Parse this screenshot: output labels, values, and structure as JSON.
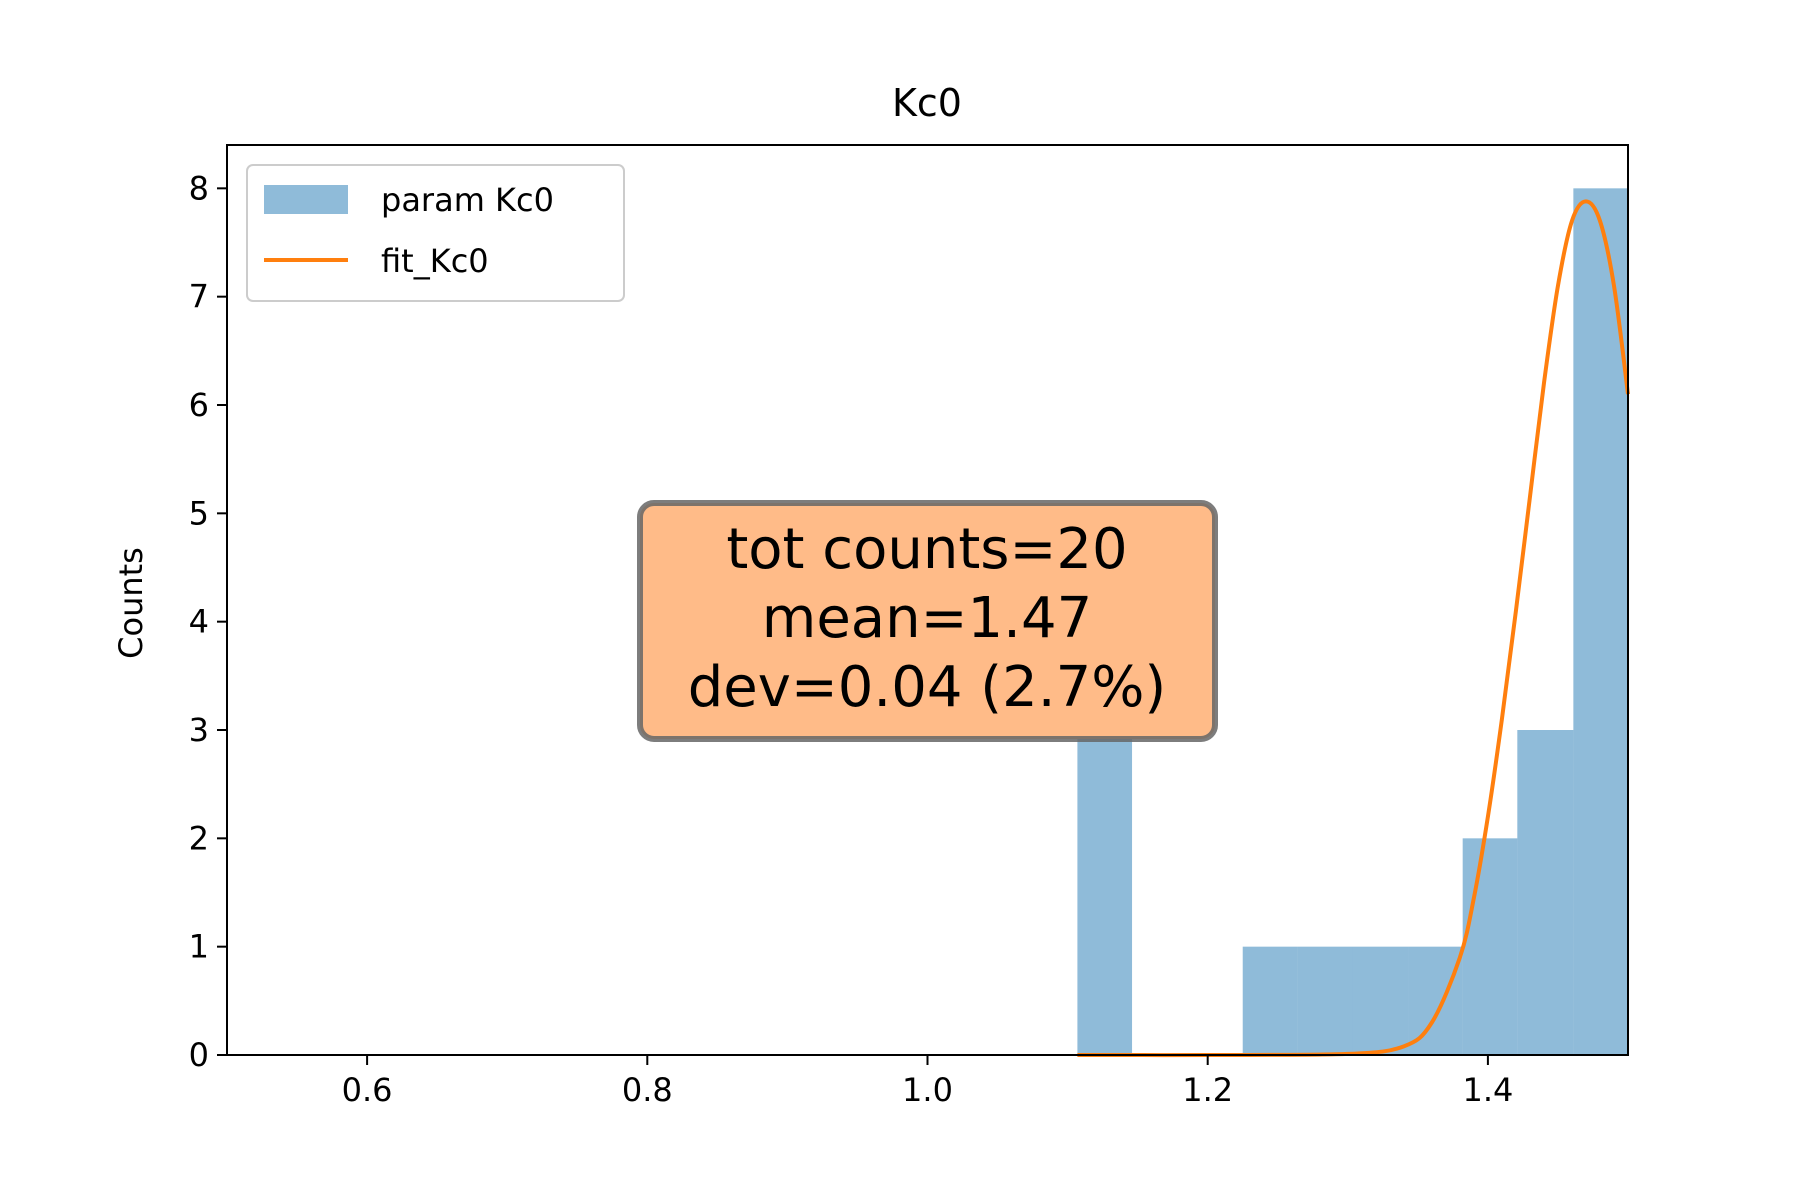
{
  "chart_data": {
    "type": "bar",
    "title": "Kc0",
    "xlabel": "",
    "ylabel": "Counts",
    "xlim": [
      0.5,
      1.5
    ],
    "ylim": [
      0,
      8.4
    ],
    "xticks": [
      "0.6",
      "0.8",
      "1.0",
      "1.2",
      "1.4"
    ],
    "yticks": [
      "0",
      "1",
      "2",
      "3",
      "4",
      "5",
      "6",
      "7",
      "8"
    ],
    "grid": false,
    "legend": {
      "placement": "top-left"
    },
    "series": [
      {
        "name": "param Kc0",
        "kind": "histogram",
        "color": "#1f77b4",
        "bins": [
          {
            "x0": 1.107,
            "x1": 1.146,
            "count": 3
          },
          {
            "x0": 1.146,
            "x1": 1.186,
            "count": 0
          },
          {
            "x0": 1.186,
            "x1": 1.225,
            "count": 0
          },
          {
            "x0": 1.225,
            "x1": 1.264,
            "count": 1
          },
          {
            "x0": 1.264,
            "x1": 1.303,
            "count": 1
          },
          {
            "x0": 1.303,
            "x1": 1.343,
            "count": 1
          },
          {
            "x0": 1.343,
            "x1": 1.382,
            "count": 1
          },
          {
            "x0": 1.382,
            "x1": 1.421,
            "count": 2
          },
          {
            "x0": 1.421,
            "x1": 1.461,
            "count": 3
          },
          {
            "x0": 1.461,
            "x1": 1.5,
            "count": 8
          }
        ]
      },
      {
        "name": "fit_Kc0",
        "kind": "line",
        "color": "#ff7f0e",
        "x": [
          1.107,
          1.2,
          1.3,
          1.34,
          1.36,
          1.38,
          1.39,
          1.4,
          1.41,
          1.42,
          1.43,
          1.44,
          1.45,
          1.46,
          1.47,
          1.48,
          1.49,
          1.5
        ],
        "y": [
          0,
          0,
          0.01,
          0.08,
          0.3,
          0.9,
          1.45,
          2.2,
          3.1,
          4.1,
          5.15,
          6.2,
          7.1,
          7.7,
          7.88,
          7.7,
          7.1,
          6.1
        ]
      }
    ],
    "annotation": {
      "lines": [
        "tot counts=20",
        "mean=1.47",
        "dev=0.04 (2.7%)"
      ],
      "background": "#ffbb88",
      "border": "#666666"
    }
  }
}
